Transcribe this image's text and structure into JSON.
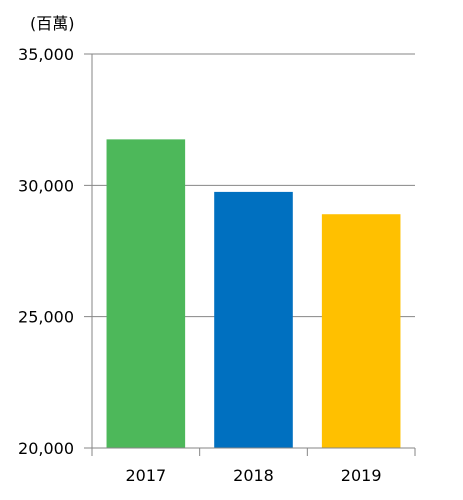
{
  "chart_data": {
    "type": "bar",
    "unit_label": "(百萬)",
    "categories": [
      "2017",
      "2018",
      "2019"
    ],
    "values": [
      31750,
      29750,
      28900
    ],
    "colors": [
      "#4db85a",
      "#0070c0",
      "#ffc000"
    ],
    "ylim": [
      20000,
      35000
    ],
    "yticks": [
      20000,
      25000,
      30000,
      35000
    ],
    "ytick_labels": [
      "20,000",
      "25,000",
      "30,000",
      "35,000"
    ],
    "grid": true,
    "gridline_color": "#868686",
    "legend": "none"
  }
}
